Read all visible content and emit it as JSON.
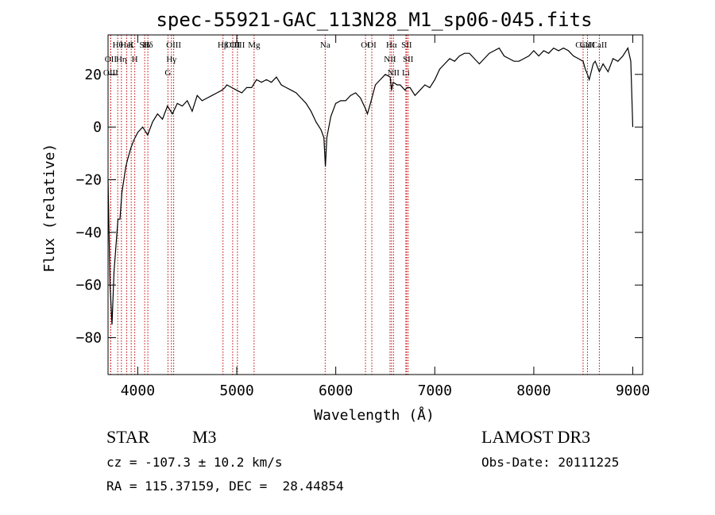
{
  "chart_data": {
    "type": "line",
    "title": "spec-55921-GAC_113N28_M1_sp06-045.fits",
    "xlabel": "Wavelength (Å)",
    "ylabel": "Flux (relative)",
    "xlim": [
      3700,
      9100
    ],
    "ylim": [
      -94,
      35
    ],
    "x_ticks": [
      4000,
      5000,
      6000,
      7000,
      8000,
      9000
    ],
    "y_ticks": [
      -80,
      -60,
      -40,
      -20,
      0,
      20
    ],
    "line_color": "#000000",
    "marker_color": "#c00000",
    "series": [
      {
        "x": [
          3700,
          3720,
          3740,
          3760,
          3780,
          3800,
          3820,
          3840,
          3860,
          3880,
          3900,
          3930,
          3960,
          4000,
          4050,
          4100,
          4150,
          4200,
          4250,
          4300,
          4350,
          4400,
          4450,
          4500,
          4550,
          4600,
          4650,
          4700,
          4750,
          4800,
          4850,
          4880,
          4900,
          4950,
          5000,
          5050,
          5100,
          5150,
          5200,
          5250,
          5300,
          5350,
          5400,
          5450,
          5500,
          5550,
          5600,
          5650,
          5700,
          5750,
          5800,
          5850,
          5880,
          5895,
          5910,
          5950,
          6000,
          6050,
          6100,
          6150,
          6200,
          6250,
          6300,
          6320,
          6350,
          6400,
          6450,
          6500,
          6550,
          6563,
          6580,
          6620,
          6650,
          6700,
          6720,
          6750,
          6800,
          6850,
          6900,
          6950,
          7000,
          7050,
          7100,
          7150,
          7200,
          7250,
          7300,
          7350,
          7400,
          7450,
          7500,
          7550,
          7600,
          7650,
          7700,
          7750,
          7800,
          7850,
          7900,
          7950,
          8000,
          8050,
          8100,
          8150,
          8200,
          8250,
          8300,
          8350,
          8400,
          8450,
          8498,
          8520,
          8542,
          8560,
          8600,
          8620,
          8662,
          8700,
          8750,
          8800,
          8850,
          8900,
          8950,
          8980,
          9000
        ],
        "values": [
          -20,
          -60,
          -75,
          -55,
          -45,
          -35,
          -35,
          -25,
          -20,
          -15,
          -12,
          -8,
          -5,
          -2,
          0,
          -3,
          2,
          5,
          3,
          8,
          5,
          9,
          8,
          10,
          6,
          12,
          10,
          11,
          12,
          13,
          14,
          15,
          16,
          15,
          14,
          13,
          15,
          15,
          18,
          17,
          18,
          17,
          19,
          16,
          15,
          14,
          13,
          11,
          9,
          6,
          2,
          -1,
          -4,
          -15,
          -4,
          4,
          9,
          10,
          10,
          12,
          13,
          11,
          7,
          5,
          9,
          16,
          18,
          20,
          19,
          14,
          17,
          16,
          16,
          14,
          15,
          15,
          12,
          14,
          16,
          15,
          18,
          22,
          24,
          26,
          25,
          27,
          28,
          28,
          26,
          24,
          26,
          28,
          29,
          30,
          27,
          26,
          25,
          25,
          26,
          27,
          29,
          27,
          29,
          28,
          30,
          29,
          30,
          29,
          27,
          26,
          25,
          22,
          20,
          18,
          24,
          25,
          21,
          24,
          21,
          26,
          25,
          27,
          30,
          25,
          0
        ]
      }
    ],
    "line_markers": [
      {
        "label": "Hθ",
        "wavelength": 3798
      },
      {
        "label": "K",
        "wavelength": 3934
      },
      {
        "label": "Hδ",
        "wavelength": 4102
      },
      {
        "label": "OIII",
        "wavelength": 4363
      },
      {
        "label": "OIII",
        "wavelength": 4959
      },
      {
        "label": "OII",
        "wavelength": 3727
      },
      {
        "label": "HeI",
        "wavelength": 3889
      },
      {
        "label": "SII",
        "wavelength": 4070
      },
      {
        "label": "Hγ",
        "wavelength": 4340
      },
      {
        "label": "OIII",
        "wavelength": 5007
      },
      {
        "label": "OIII",
        "wavelength": 3727
      },
      {
        "label": "Hη",
        "wavelength": 3835
      },
      {
        "label": "H",
        "wavelength": 3970
      },
      {
        "label": "G",
        "wavelength": 4305
      },
      {
        "label": "Hβ",
        "wavelength": 4861
      },
      {
        "label": "Mg",
        "wavelength": 5175
      },
      {
        "label": "Na",
        "wavelength": 5893
      },
      {
        "label": "OI",
        "wavelength": 6300
      },
      {
        "label": "OI",
        "wavelength": 6364
      },
      {
        "label": "Hα",
        "wavelength": 6563
      },
      {
        "label": "NII",
        "wavelength": 6548
      },
      {
        "label": "NII",
        "wavelength": 6583
      },
      {
        "label": "SII",
        "wavelength": 6716
      },
      {
        "label": "SII",
        "wavelength": 6731
      },
      {
        "label": "Li",
        "wavelength": 6708
      },
      {
        "label": "CaII",
        "wavelength": 8542
      },
      {
        "label": "CaII",
        "wavelength": 8498
      },
      {
        "label": "CaII",
        "wavelength": 8662
      }
    ]
  },
  "footer": {
    "class_label": "STAR",
    "subclass_label": "M3",
    "redshift_text": "cz = -107.3 ± 10.2 km/s",
    "coords_text": "RA = 115.37159, DEC =  28.44854",
    "survey_label": "LAMOST DR3",
    "obs_date_text": "Obs-Date: 20111225"
  }
}
